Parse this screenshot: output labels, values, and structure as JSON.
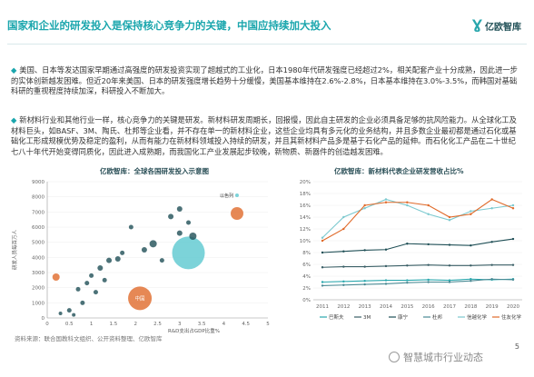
{
  "slide": {
    "title": "国家和企业的研发投入是保持核心竞争力的关键，中国应持续加大投入",
    "logo_text": "亿欧智库",
    "para1": "美国、日本等发达国家早期通过高强度的研发投资实现了超越式的工业化，日本1980年代研发强度已经超过2%，相关配套产业十分成熟，因此进一步的实体创新越发困难。但近20年来美国、日本的研发强度增长趋势十分缓慢，美国基本维持在2.6%-2.8%，日本基本维持在3.0%-3.5%，而韩国对基础科研的重视程度持续加深，科研投入不断加大。",
    "para2": "新材料行业和其他行业一样，核心竞争力的关键是研发。新材料研发周期长，回报慢，因此自主研发的企业必须具备足够的抗风险能力。从全球化工及材料巨头，如BASF、3M、陶氏、杜邦等企业看，并不存在单一的新材料企业，这些企业均具有多元化的业务结构，并且多数企业最初都是通过石化或基础化工形成规模优势及稳定的盈利，从而有能力在新材料领域投入持续的研发，并且其新材料产品多是基于石化产品的延伸。而石化化工产品在二十世纪七八十年代开始变得同质化，因此进入成熟期，而我国化工产业发展起步较晚，新物质、新器件的创造越发困难。",
    "source": "资料来源：联合国教科文组织、公开资料整理、亿欧智库",
    "page_number": "5",
    "watermark": "智慧城市行业动态"
  },
  "chart_data": [
    {
      "type": "scatter",
      "title": "亿欧智库：全球各国研发投入示意图",
      "xlabel": "R&D支出占GDP比重%",
      "ylabel": "研发人员每百万人",
      "xlim": [
        0,
        5
      ],
      "ylim": [
        0,
        9000
      ],
      "xticks": [
        "0",
        "0.5",
        "1",
        "1.5",
        "2",
        "2.5",
        "3",
        "3.5",
        "4",
        "4.5",
        "5"
      ],
      "yticks": [
        "0",
        "1000",
        "2000",
        "3000",
        "4000",
        "5000",
        "6000",
        "7000",
        "8000",
        "9000"
      ],
      "highlight_labels": [
        "以色列",
        "中国"
      ],
      "bubbles": [
        {
          "x": 4.3,
          "y": 8100,
          "r": 2,
          "color": "#5bc8d0"
        },
        {
          "x": 4.3,
          "y": 6900,
          "r": 7,
          "color": "#e06a2a"
        },
        {
          "x": 3.2,
          "y": 4300,
          "r": 18,
          "color": "#5bc8d0"
        },
        {
          "x": 2.1,
          "y": 1300,
          "r": 13,
          "color": "#e06a2a"
        },
        {
          "x": 3.3,
          "y": 5400,
          "r": 4,
          "color": "#1f4f56"
        },
        {
          "x": 3.0,
          "y": 5600,
          "r": 3,
          "color": "#1f4f56"
        },
        {
          "x": 2.4,
          "y": 4900,
          "r": 4,
          "color": "#1f4f56"
        },
        {
          "x": 2.2,
          "y": 4500,
          "r": 3,
          "color": "#1f4f56"
        },
        {
          "x": 2.8,
          "y": 6700,
          "r": 3,
          "color": "#1f4f56"
        },
        {
          "x": 3.0,
          "y": 7200,
          "r": 3,
          "color": "#1f4f56"
        },
        {
          "x": 3.2,
          "y": 6300,
          "r": 2.5,
          "color": "#1f4f56"
        },
        {
          "x": 1.9,
          "y": 6000,
          "r": 2.5,
          "color": "#1f4f56"
        },
        {
          "x": 1.6,
          "y": 3900,
          "r": 3,
          "color": "#1f4f56"
        },
        {
          "x": 1.4,
          "y": 3800,
          "r": 3,
          "color": "#1f4f56"
        },
        {
          "x": 1.2,
          "y": 3300,
          "r": 3,
          "color": "#1f4f56"
        },
        {
          "x": 1.0,
          "y": 2800,
          "r": 2.5,
          "color": "#1f4f56"
        },
        {
          "x": 1.3,
          "y": 2500,
          "r": 2.5,
          "color": "#1f4f56"
        },
        {
          "x": 0.9,
          "y": 2300,
          "r": 2.5,
          "color": "#1f4f56"
        },
        {
          "x": 0.7,
          "y": 1900,
          "r": 2.5,
          "color": "#1f4f56"
        },
        {
          "x": 1.1,
          "y": 1700,
          "r": 2.5,
          "color": "#1f4f56"
        },
        {
          "x": 0.8,
          "y": 1000,
          "r": 2.5,
          "color": "#1f4f56"
        },
        {
          "x": 0.5,
          "y": 500,
          "r": 2.5,
          "color": "#1f4f56"
        },
        {
          "x": 0.3,
          "y": 300,
          "r": 2,
          "color": "#1f4f56"
        },
        {
          "x": 0.6,
          "y": 200,
          "r": 2,
          "color": "#1f4f56"
        },
        {
          "x": 0.2,
          "y": 2700,
          "r": 4,
          "color": "#e06a2a"
        },
        {
          "x": 1.7,
          "y": 4300,
          "r": 2.5,
          "color": "#1f4f56"
        },
        {
          "x": 2.6,
          "y": 3800,
          "r": 2.5,
          "color": "#1f4f56"
        }
      ]
    },
    {
      "type": "line",
      "title": "亿欧智库：新材料代表企业研发营收占比%",
      "categories": [
        "2011",
        "2012",
        "2013",
        "2014",
        "2015",
        "2016",
        "2017",
        "2018",
        "2019",
        "2020"
      ],
      "ylim": [
        0,
        20
      ],
      "yticks": [
        "0%",
        "2%",
        "4%",
        "6%",
        "8%",
        "10%",
        "12%",
        "14%",
        "16%",
        "18%",
        "20%"
      ],
      "series": [
        {
          "name": "巴斯夫",
          "color": "#2aa7ad",
          "values": [
            3.0,
            3.1,
            3.2,
            3.3,
            3.3,
            3.4,
            3.3,
            3.5,
            3.4,
            3.5
          ]
        },
        {
          "name": "3M",
          "color": "#3a5f66",
          "values": [
            5.5,
            5.6,
            5.6,
            5.7,
            5.8,
            5.9,
            5.8,
            5.8,
            5.9,
            5.9
          ]
        },
        {
          "name": "康宁",
          "color": "#1f4f56",
          "values": [
            8.0,
            8.2,
            8.4,
            8.5,
            9.5,
            9.4,
            9.3,
            9.2,
            9.8,
            10.3
          ]
        },
        {
          "name": "杜邦",
          "color": "#4a8a94",
          "values": [
            2.4,
            2.5,
            2.6,
            2.7,
            2.9,
            3.0,
            3.0,
            3.2,
            3.5,
            3.4
          ]
        },
        {
          "name": "信越化学",
          "color": "#7cc9cf",
          "values": [
            10.5,
            14.0,
            15.5,
            17.0,
            16.0,
            14.5,
            13.5,
            15.0,
            15.5,
            16.0
          ]
        },
        {
          "name": "住友化学",
          "color": "#e06a2a",
          "values": [
            10.0,
            12.0,
            16.0,
            16.5,
            16.5,
            16.0,
            14.0,
            14.5,
            17.0,
            15.5
          ]
        }
      ]
    }
  ]
}
